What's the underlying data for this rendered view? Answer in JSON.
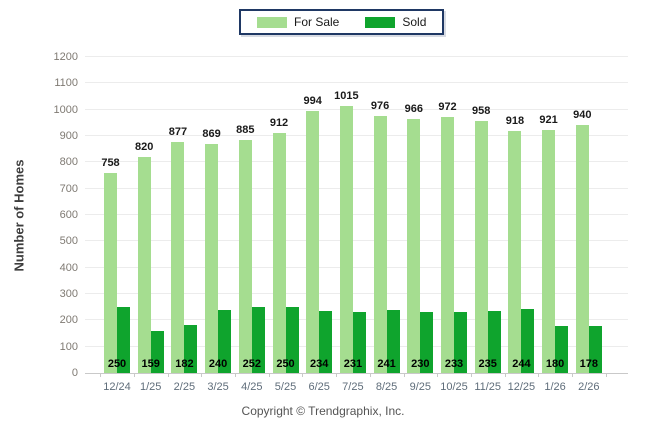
{
  "legend": {
    "items": [
      {
        "label": "For Sale",
        "color": "#A5DD90"
      },
      {
        "label": "Sold",
        "color": "#0FA42D"
      }
    ]
  },
  "chart_data": {
    "type": "bar",
    "categories": [
      "12/24",
      "1/25",
      "2/25",
      "3/25",
      "4/25",
      "5/25",
      "6/25",
      "7/25",
      "8/25",
      "9/25",
      "10/25",
      "11/25",
      "12/25",
      "1/26",
      "2/26"
    ],
    "series": [
      {
        "name": "For Sale",
        "color": "#A5DD90",
        "values": [
          758,
          820,
          877,
          869,
          885,
          912,
          994,
          1015,
          976,
          966,
          972,
          958,
          918,
          921,
          940
        ]
      },
      {
        "name": "Sold",
        "color": "#0FA42D",
        "values": [
          250,
          159,
          182,
          240,
          252,
          250,
          234,
          231,
          241,
          230,
          233,
          235,
          244,
          180,
          178
        ]
      }
    ],
    "title": "",
    "xlabel": "",
    "ylabel": "Number of Homes",
    "ylim": [
      0,
      1200
    ],
    "ytick_step": 100,
    "grid": true,
    "legend_position": "top-center",
    "bar_value_labels": {
      "for_sale": "above-bar",
      "sold": "bottom-inside"
    }
  },
  "footer": {
    "copyright": "Copyright © Trendgraphix, Inc."
  },
  "colors": {
    "grid": "#ececec",
    "baseline": "#c9c9c9",
    "y_tick_label": "#7f7a73",
    "x_tick_label": "#5f6d7a",
    "legend_border": "#1F3864",
    "value_label": "#1a1a1a"
  }
}
